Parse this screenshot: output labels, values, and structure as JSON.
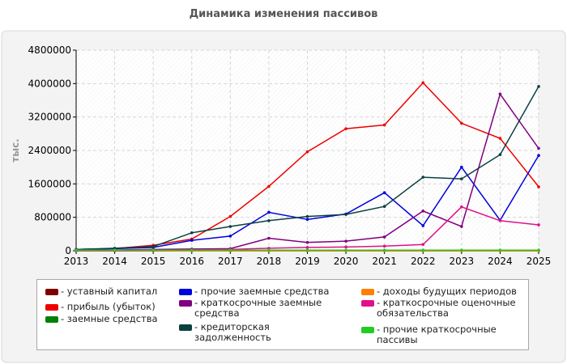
{
  "chart_data": {
    "type": "line",
    "title": "Динамика изменения пассивов",
    "ylabel": "тыс.",
    "x": [
      "2013",
      "2014",
      "2015",
      "2016",
      "2017",
      "2018",
      "2019",
      "2020",
      "2021",
      "2022",
      "2023",
      "2024",
      "2025"
    ],
    "ylim": [
      0,
      4800000
    ],
    "yticks": [
      "0",
      "800000",
      "1600000",
      "2400000",
      "3200000",
      "4000000",
      "4800000"
    ],
    "grid": true,
    "legend_position": "bottom",
    "series": [
      {
        "name": "- уставный капитал",
        "color": "#800000",
        "values": [
          10,
          10,
          10,
          10,
          10,
          10,
          10,
          10,
          10,
          10,
          10,
          10,
          10
        ]
      },
      {
        "name": "- прибыль (убыток)",
        "color": "#ee0000",
        "values": [
          30000,
          55000,
          130000,
          280000,
          820000,
          1540000,
          2370000,
          2920000,
          3010000,
          4020000,
          3050000,
          2690000,
          1530000
        ]
      },
      {
        "name": "- заемные средства",
        "color": "#008000",
        "values": [
          5000,
          5000,
          5000,
          5000,
          5000,
          5000,
          5000,
          5000,
          5000,
          5000,
          5000,
          5000,
          5000
        ]
      },
      {
        "name": "- прочие заемные средства",
        "color": "#0000dd",
        "values": [
          30000,
          50000,
          80000,
          250000,
          350000,
          920000,
          750000,
          880000,
          1390000,
          600000,
          2000000,
          730000,
          2280000
        ]
      },
      {
        "name": "- краткосрочные заемные средства",
        "color": "#800080",
        "values": [
          10000,
          20000,
          30000,
          40000,
          50000,
          300000,
          200000,
          230000,
          330000,
          950000,
          580000,
          3750000,
          2450000
        ]
      },
      {
        "name": "- кредиторская задолженность",
        "color": "#0a4040",
        "values": [
          30000,
          60000,
          100000,
          430000,
          580000,
          720000,
          820000,
          870000,
          1060000,
          1760000,
          1720000,
          2300000,
          3930000
        ]
      },
      {
        "name": "- доходы будущих периодов",
        "color": "#ff8000",
        "values": [
          0,
          0,
          0,
          0,
          0,
          0,
          0,
          0,
          0,
          0,
          0,
          0,
          0
        ]
      },
      {
        "name": "- краткосрочные оценочные обязательства",
        "color": "#e0108a",
        "values": [
          5000,
          5000,
          10000,
          20000,
          30000,
          60000,
          80000,
          90000,
          110000,
          150000,
          1050000,
          720000,
          620000
        ]
      },
      {
        "name": "- прочие краткосрочные пассивы",
        "color": "#22cc22",
        "values": [
          15000,
          15000,
          15000,
          15000,
          15000,
          15000,
          15000,
          15000,
          15000,
          15000,
          15000,
          15000,
          15000
        ]
      }
    ]
  }
}
